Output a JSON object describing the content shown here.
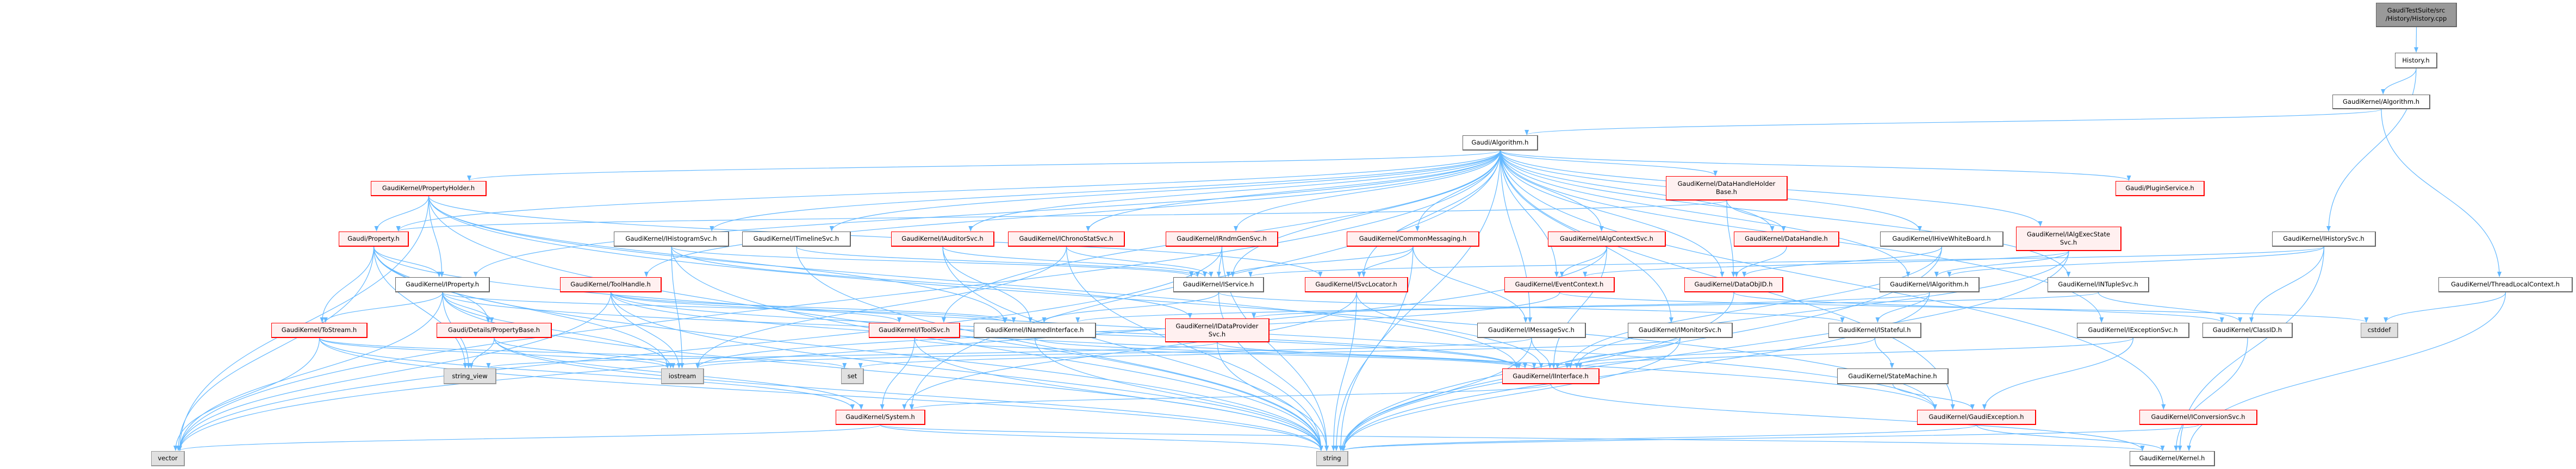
{
  "colors": {
    "edge": "#63B8FF",
    "root_fill": "#999999",
    "red_border": "#FF0000",
    "red_fill": "#FFF0F0",
    "system_fill": "#E0E0E0"
  },
  "nodes": [
    {
      "id": "root",
      "label": "GaudiTestSuite/src\n/History/History.cpp",
      "style": "root"
    },
    {
      "id": "history_h",
      "label": "History.h",
      "style": "white"
    },
    {
      "id": "gk_algorithm",
      "label": "GaudiKernel/Algorithm.h",
      "style": "white"
    },
    {
      "id": "g_algorithm",
      "label": "Gaudi/Algorithm.h",
      "style": "white"
    },
    {
      "id": "propertyholder",
      "label": "GaudiKernel/PropertyHolder.h",
      "style": "red"
    },
    {
      "id": "dhhb",
      "label": "GaudiKernel/DataHandleHolder\nBase.h",
      "style": "red"
    },
    {
      "id": "pluginservice",
      "label": "Gaudi/PluginService.h",
      "style": "red"
    },
    {
      "id": "property",
      "label": "Gaudi/Property.h",
      "style": "red"
    },
    {
      "id": "ihistogramsvc",
      "label": "GaudiKernel/IHistogramSvc.h",
      "style": "white"
    },
    {
      "id": "itimelinesvc",
      "label": "GaudiKernel/ITimelineSvc.h",
      "style": "white"
    },
    {
      "id": "iauditorsvc",
      "label": "GaudiKernel/IAuditorSvc.h",
      "style": "red"
    },
    {
      "id": "ichronostatsvc",
      "label": "GaudiKernel/IChronoStatSvc.h",
      "style": "red"
    },
    {
      "id": "irndmgensvc",
      "label": "GaudiKernel/IRndmGenSvc.h",
      "style": "red"
    },
    {
      "id": "commonmessaging",
      "label": "GaudiKernel/CommonMessaging.h",
      "style": "red"
    },
    {
      "id": "ialgcontextsvc",
      "label": "GaudiKernel/IAlgContextSvc.h",
      "style": "red"
    },
    {
      "id": "datahandle",
      "label": "GaudiKernel/DataHandle.h",
      "style": "red"
    },
    {
      "id": "ihivewhiteboard",
      "label": "GaudiKernel/IHiveWhiteBoard.h",
      "style": "white"
    },
    {
      "id": "ialgexecstatesvc",
      "label": "GaudiKernel/IAlgExecState\nSvc.h",
      "style": "red"
    },
    {
      "id": "ihistorysvc",
      "label": "GaudiKernel/IHistorySvc.h",
      "style": "white"
    },
    {
      "id": "iproperty",
      "label": "GaudiKernel/IProperty.h",
      "style": "white"
    },
    {
      "id": "toolhandle",
      "label": "GaudiKernel/ToolHandle.h",
      "style": "red"
    },
    {
      "id": "iservice",
      "label": "GaudiKernel/IService.h",
      "style": "white"
    },
    {
      "id": "isvclocator",
      "label": "GaudiKernel/ISvcLocator.h",
      "style": "red"
    },
    {
      "id": "eventcontext",
      "label": "GaudiKernel/EventContext.h",
      "style": "red"
    },
    {
      "id": "dataobjid",
      "label": "GaudiKernel/DataObjID.h",
      "style": "red"
    },
    {
      "id": "ialgorithm",
      "label": "GaudiKernel/IAlgorithm.h",
      "style": "white"
    },
    {
      "id": "intuplesvc",
      "label": "GaudiKernel/INTupleSvc.h",
      "style": "white"
    },
    {
      "id": "threadlocalcontext",
      "label": "GaudiKernel/ThreadLocalContext.h",
      "style": "white"
    },
    {
      "id": "tostream",
      "label": "GaudiKernel/ToStream.h",
      "style": "red"
    },
    {
      "id": "propertybase",
      "label": "Gaudi/Details/PropertyBase.h",
      "style": "red"
    },
    {
      "id": "itoolsvc",
      "label": "GaudiKernel/IToolSvc.h",
      "style": "red"
    },
    {
      "id": "inamedinterface",
      "label": "GaudiKernel/INamedInterface.h",
      "style": "white"
    },
    {
      "id": "idataprovidersvc",
      "label": "GaudiKernel/IDataProvider\nSvc.h",
      "style": "red"
    },
    {
      "id": "imessagesvc",
      "label": "GaudiKernel/IMessageSvc.h",
      "style": "white"
    },
    {
      "id": "imonitorsvc",
      "label": "GaudiKernel/IMonitorSvc.h",
      "style": "white"
    },
    {
      "id": "istateful",
      "label": "GaudiKernel/IStateful.h",
      "style": "white"
    },
    {
      "id": "iexceptionsvc",
      "label": "GaudiKernel/IExceptionSvc.h",
      "style": "white"
    },
    {
      "id": "classid",
      "label": "GaudiKernel/ClassID.h",
      "style": "white"
    },
    {
      "id": "cstddef",
      "label": "cstddef",
      "style": "sys"
    },
    {
      "id": "string_view",
      "label": "string_view",
      "style": "sys"
    },
    {
      "id": "iostream",
      "label": "iostream",
      "style": "sys"
    },
    {
      "id": "set",
      "label": "set",
      "style": "sys"
    },
    {
      "id": "iinterface",
      "label": "GaudiKernel/IInterface.h",
      "style": "red"
    },
    {
      "id": "statemachine",
      "label": "GaudiKernel/StateMachine.h",
      "style": "white"
    },
    {
      "id": "system",
      "label": "GaudiKernel/System.h",
      "style": "red"
    },
    {
      "id": "gaudiexception",
      "label": "GaudiKernel/GaudiException.h",
      "style": "red"
    },
    {
      "id": "iconversionsvc",
      "label": "GaudiKernel/IConversionSvc.h",
      "style": "red"
    },
    {
      "id": "vector",
      "label": "vector",
      "style": "sys"
    },
    {
      "id": "string",
      "label": "string",
      "style": "sys"
    },
    {
      "id": "kernel",
      "label": "GaudiKernel/Kernel.h",
      "style": "white"
    }
  ],
  "edges": [
    [
      "root",
      "history_h"
    ],
    [
      "history_h",
      "gk_algorithm"
    ],
    [
      "history_h",
      "ihistorysvc"
    ],
    [
      "gk_algorithm",
      "g_algorithm"
    ],
    [
      "gk_algorithm",
      "threadlocalcontext"
    ],
    [
      "g_algorithm",
      "propertyholder"
    ],
    [
      "g_algorithm",
      "property"
    ],
    [
      "g_algorithm",
      "iproperty"
    ],
    [
      "g_algorithm",
      "toolhandle"
    ],
    [
      "g_algorithm",
      "ihistogramsvc"
    ],
    [
      "g_algorithm",
      "itimelinesvc"
    ],
    [
      "g_algorithm",
      "iauditorsvc"
    ],
    [
      "g_algorithm",
      "ichronostatsvc"
    ],
    [
      "g_algorithm",
      "irndmgensvc"
    ],
    [
      "g_algorithm",
      "commonmessaging"
    ],
    [
      "g_algorithm",
      "ialgcontextsvc"
    ],
    [
      "g_algorithm",
      "dhhb"
    ],
    [
      "g_algorithm",
      "datahandle"
    ],
    [
      "g_algorithm",
      "ihivewhiteboard"
    ],
    [
      "g_algorithm",
      "ialgexecstatesvc"
    ],
    [
      "g_algorithm",
      "pluginservice"
    ],
    [
      "g_algorithm",
      "iservice"
    ],
    [
      "g_algorithm",
      "isvclocator"
    ],
    [
      "g_algorithm",
      "eventcontext"
    ],
    [
      "g_algorithm",
      "dataobjid"
    ],
    [
      "g_algorithm",
      "ialgorithm"
    ],
    [
      "g_algorithm",
      "intuplesvc"
    ],
    [
      "g_algorithm",
      "itoolsvc"
    ],
    [
      "g_algorithm",
      "imonitorsvc"
    ],
    [
      "g_algorithm",
      "iexceptionsvc"
    ],
    [
      "g_algorithm",
      "iconversionsvc"
    ],
    [
      "g_algorithm",
      "imessagesvc"
    ],
    [
      "g_algorithm",
      "system"
    ],
    [
      "g_algorithm",
      "gaudiexception"
    ],
    [
      "g_algorithm",
      "string"
    ],
    [
      "g_algorithm",
      "vector"
    ],
    [
      "propertyholder",
      "property"
    ],
    [
      "propertyholder",
      "iproperty"
    ],
    [
      "propertyholder",
      "inamedinterface"
    ],
    [
      "propertyholder",
      "isvclocator"
    ],
    [
      "propertyholder",
      "iinterface"
    ],
    [
      "propertyholder",
      "vector"
    ],
    [
      "propertyholder",
      "string"
    ],
    [
      "propertyholder",
      "gaudiexception"
    ],
    [
      "property",
      "iproperty"
    ],
    [
      "property",
      "tostream"
    ],
    [
      "property",
      "propertybase"
    ],
    [
      "property",
      "string"
    ],
    [
      "property",
      "iostream"
    ],
    [
      "property",
      "vector"
    ],
    [
      "property",
      "gaudiexception"
    ],
    [
      "property",
      "string_view"
    ],
    [
      "iproperty",
      "tostream"
    ],
    [
      "iproperty",
      "propertybase"
    ],
    [
      "iproperty",
      "string_view"
    ],
    [
      "iproperty",
      "iostream"
    ],
    [
      "iproperty",
      "string"
    ],
    [
      "iproperty",
      "vector"
    ],
    [
      "iproperty",
      "inamedinterface"
    ],
    [
      "iproperty",
      "iinterface"
    ],
    [
      "tostream",
      "vector"
    ],
    [
      "tostream",
      "string"
    ],
    [
      "tostream",
      "iostream"
    ],
    [
      "tostream",
      "set"
    ],
    [
      "tostream",
      "system"
    ],
    [
      "propertybase",
      "string_view"
    ],
    [
      "propertybase",
      "string"
    ],
    [
      "propertybase",
      "iostream"
    ],
    [
      "propertybase",
      "system"
    ],
    [
      "toolhandle",
      "itoolsvc"
    ],
    [
      "toolhandle",
      "inamedinterface"
    ],
    [
      "toolhandle",
      "iinterface"
    ],
    [
      "toolhandle",
      "iostream"
    ],
    [
      "toolhandle",
      "vector"
    ],
    [
      "toolhandle",
      "string"
    ],
    [
      "toolhandle",
      "gaudiexception"
    ],
    [
      "ihistogramsvc",
      "iservice"
    ],
    [
      "ihistogramsvc",
      "iostream"
    ],
    [
      "ihistogramsvc",
      "string"
    ],
    [
      "ihistogramsvc",
      "idataprovidersvc"
    ],
    [
      "itimelinesvc",
      "iservice"
    ],
    [
      "itimelinesvc",
      "string"
    ],
    [
      "iauditorsvc",
      "iservice"
    ],
    [
      "iauditorsvc",
      "string"
    ],
    [
      "iauditorsvc",
      "inamedinterface"
    ],
    [
      "ichronostatsvc",
      "iservice"
    ],
    [
      "ichronostatsvc",
      "iostream"
    ],
    [
      "ichronostatsvc",
      "string"
    ],
    [
      "irndmgensvc",
      "iservice"
    ],
    [
      "irndmgensvc",
      "string"
    ],
    [
      "irndmgensvc",
      "vector"
    ],
    [
      "commonmessaging",
      "iservice"
    ],
    [
      "commonmessaging",
      "isvclocator"
    ],
    [
      "commonmessaging",
      "imessagesvc"
    ],
    [
      "commonmessaging",
      "string"
    ],
    [
      "ialgcontextsvc",
      "eventcontext"
    ],
    [
      "ialgcontextsvc",
      "iinterface"
    ],
    [
      "ialgcontextsvc",
      "vector"
    ],
    [
      "dhhb",
      "datahandle"
    ],
    [
      "dhhb",
      "dataobjid"
    ],
    [
      "dhhb",
      "property"
    ],
    [
      "datahandle",
      "dataobjid"
    ],
    [
      "ihivewhiteboard",
      "dataobjid"
    ],
    [
      "ihivewhiteboard",
      "iinterface"
    ],
    [
      "ihivewhiteboard",
      "string"
    ],
    [
      "ialgexecstatesvc",
      "ialgorithm"
    ],
    [
      "ialgexecstatesvc",
      "eventcontext"
    ],
    [
      "ialgexecstatesvc",
      "iinterface"
    ],
    [
      "ialgexecstatesvc",
      "string"
    ],
    [
      "ihistorysvc",
      "iservice"
    ],
    [
      "ihistorysvc",
      "classid"
    ],
    [
      "ihistorysvc",
      "kernel"
    ],
    [
      "ihistorysvc",
      "ialgorithm"
    ],
    [
      "iservice",
      "inamedinterface"
    ],
    [
      "iservice",
      "istateful"
    ],
    [
      "iservice",
      "string"
    ],
    [
      "isvclocator",
      "iinterface"
    ],
    [
      "isvclocator",
      "system"
    ],
    [
      "isvclocator",
      "string"
    ],
    [
      "eventcontext",
      "cstddef"
    ],
    [
      "eventcontext",
      "iostream"
    ],
    [
      "dataobjid",
      "classid"
    ],
    [
      "dataobjid",
      "string"
    ],
    [
      "ialgorithm",
      "istateful"
    ],
    [
      "ialgorithm",
      "inamedinterface"
    ],
    [
      "ialgorithm",
      "string"
    ],
    [
      "intuplesvc",
      "classid"
    ],
    [
      "intuplesvc",
      "idataprovidersvc"
    ],
    [
      "threadlocalcontext",
      "cstddef"
    ],
    [
      "threadlocalcontext",
      "kernel"
    ],
    [
      "itoolsvc",
      "system"
    ],
    [
      "itoolsvc",
      "iinterface"
    ],
    [
      "itoolsvc",
      "string"
    ],
    [
      "inamedinterface",
      "iinterface"
    ],
    [
      "inamedinterface",
      "string"
    ],
    [
      "idataprovidersvc",
      "iinterface"
    ],
    [
      "idataprovidersvc",
      "string"
    ],
    [
      "idataprovidersvc",
      "string_view"
    ],
    [
      "imessagesvc",
      "iinterface"
    ],
    [
      "imessagesvc",
      "string"
    ],
    [
      "imessagesvc",
      "iostream"
    ],
    [
      "imonitorsvc",
      "iinterface"
    ],
    [
      "imonitorsvc",
      "set"
    ],
    [
      "imonitorsvc",
      "string"
    ],
    [
      "istateful",
      "iinterface"
    ],
    [
      "istateful",
      "statemachine"
    ],
    [
      "iexceptionsvc",
      "gaudiexception"
    ],
    [
      "iexceptionsvc",
      "iinterface"
    ],
    [
      "classid",
      "kernel"
    ],
    [
      "iinterface",
      "system"
    ],
    [
      "iinterface",
      "kernel"
    ],
    [
      "statemachine",
      "gaudiexception"
    ],
    [
      "system",
      "vector"
    ],
    [
      "system",
      "string"
    ],
    [
      "system",
      "kernel"
    ],
    [
      "gaudiexception",
      "string"
    ],
    [
      "gaudiexception",
      "kernel"
    ],
    [
      "iconversionsvc",
      "string"
    ]
  ]
}
